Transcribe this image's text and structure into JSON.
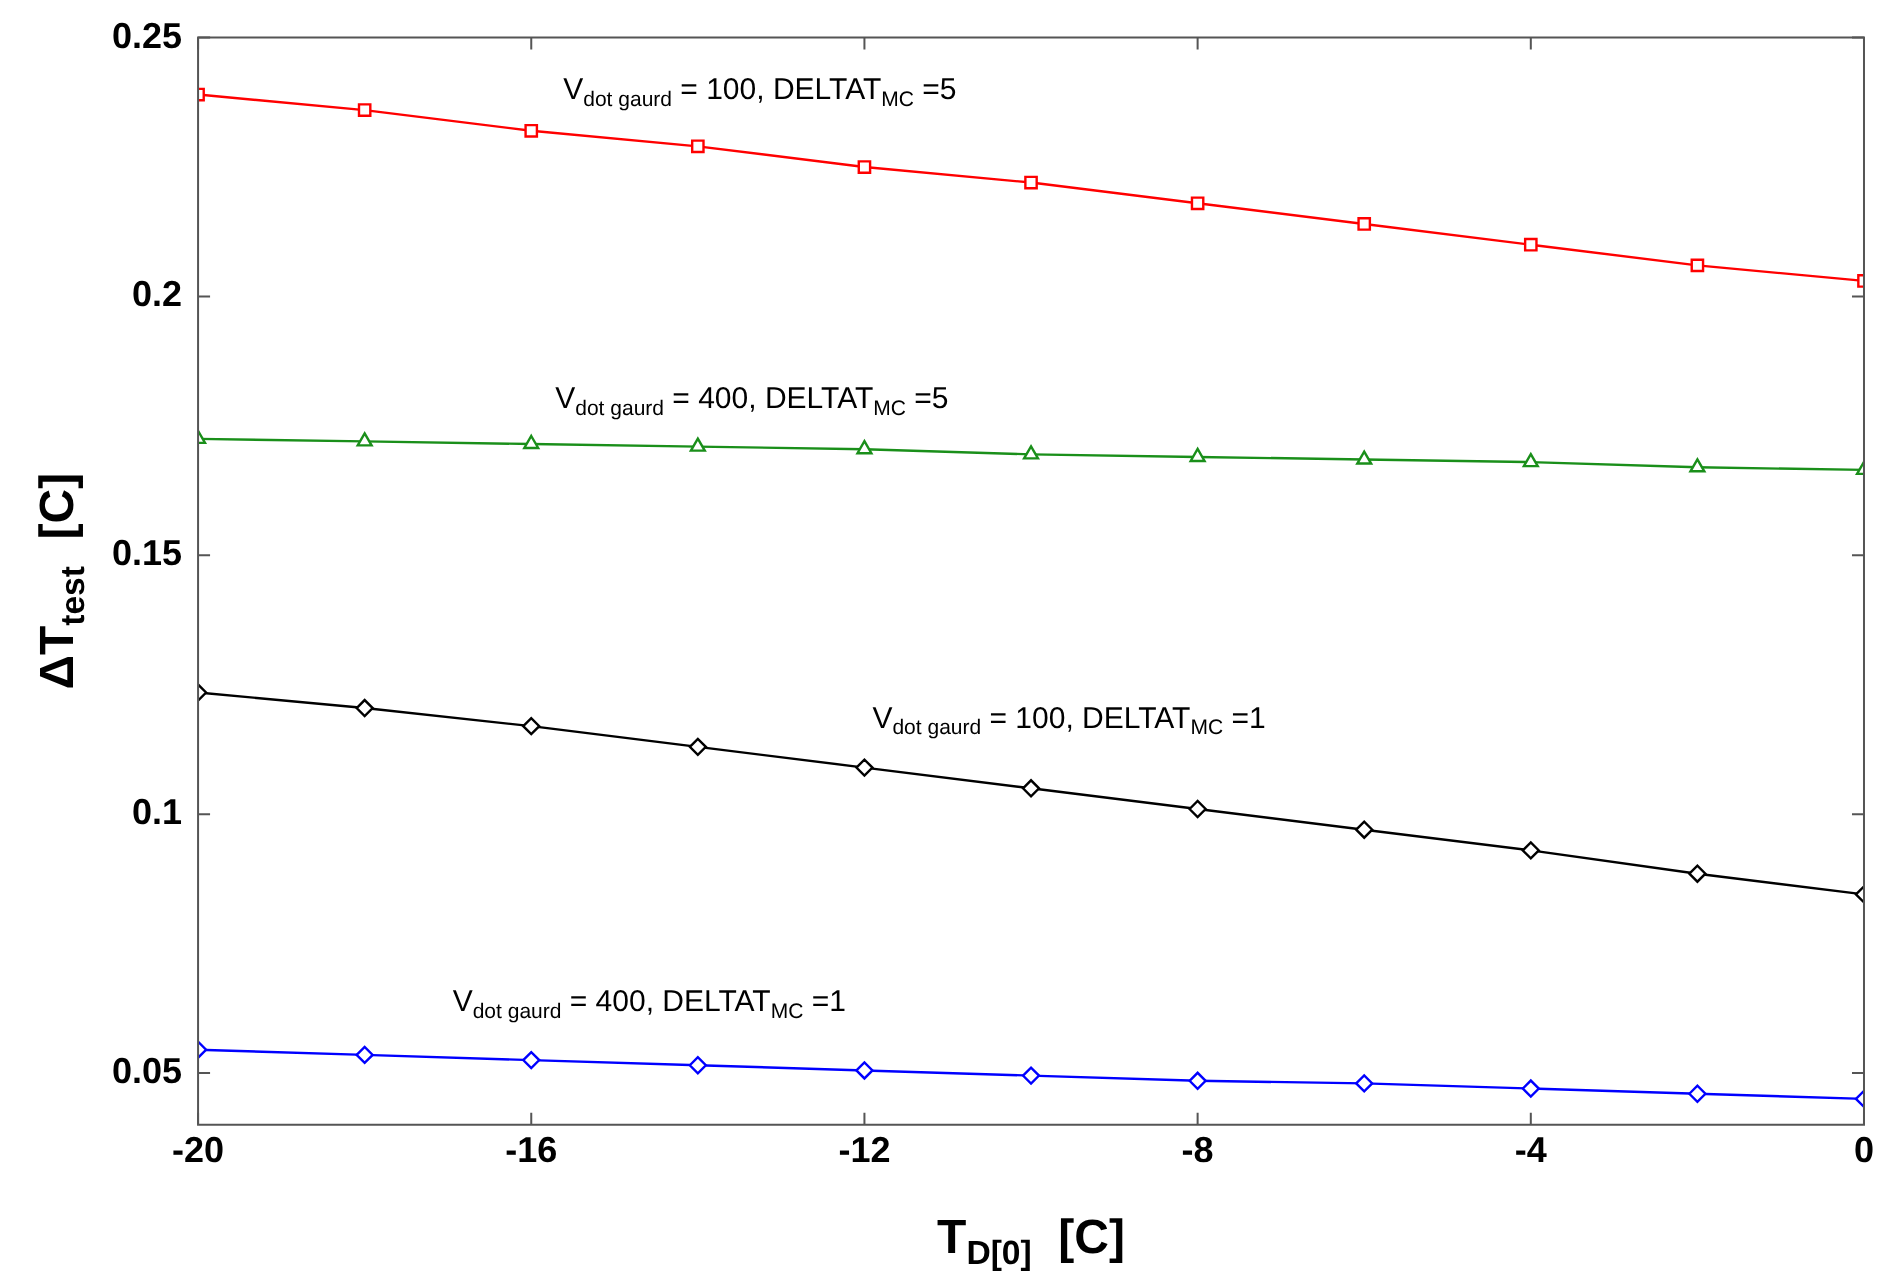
{
  "chart_data": {
    "type": "line",
    "xlabel": "T$_{D[0]}$  [C]",
    "ylabel": "ΔT$_{test}$  [C]",
    "x": [
      -20,
      -18,
      -16,
      -14,
      -12,
      -10,
      -8,
      -6,
      -4,
      -2,
      0
    ],
    "series": [
      {
        "name": "V$_{dot gaurd}$ = 100, DELTAT$_{MC}$ =5",
        "color": "#ff0000",
        "marker": "square",
        "values": [
          0.239,
          0.236,
          0.232,
          0.229,
          0.225,
          0.222,
          0.218,
          0.214,
          0.21,
          0.206,
          0.203
        ]
      },
      {
        "name": "V$_{dot gaurd}$ = 400, DELTAT$_{MC}$ =5",
        "color": "#1a8f1a",
        "marker": "triangle",
        "values": [
          0.1725,
          0.172,
          0.1715,
          0.171,
          0.1705,
          0.1695,
          0.169,
          0.1685,
          0.168,
          0.167,
          0.1665
        ]
      },
      {
        "name": "V$_{dot gaurd}$ = 100, DELTAT$_{MC}$ =1",
        "color": "#000000",
        "marker": "diamond",
        "values": [
          0.1235,
          0.1205,
          0.117,
          0.113,
          0.109,
          0.105,
          0.101,
          0.097,
          0.093,
          0.0885,
          0.0845
        ]
      },
      {
        "name": "V$_{dot gaurd}$ = 400, DELTAT$_{MC}$ =1",
        "color": "#0000ff",
        "marker": "diamond",
        "values": [
          0.0545,
          0.0535,
          0.0525,
          0.0515,
          0.0505,
          0.0495,
          0.0485,
          0.048,
          0.047,
          0.046,
          0.045
        ]
      }
    ],
    "xlim": [
      -20,
      0
    ],
    "xticks": [
      -20,
      -16,
      -12,
      -8,
      -4,
      0
    ],
    "ylim": [
      0.04,
      0.25
    ],
    "yticks": [
      0.05,
      0.1,
      0.15,
      0.2,
      0.25
    ],
    "grid": false,
    "legend": false
  }
}
